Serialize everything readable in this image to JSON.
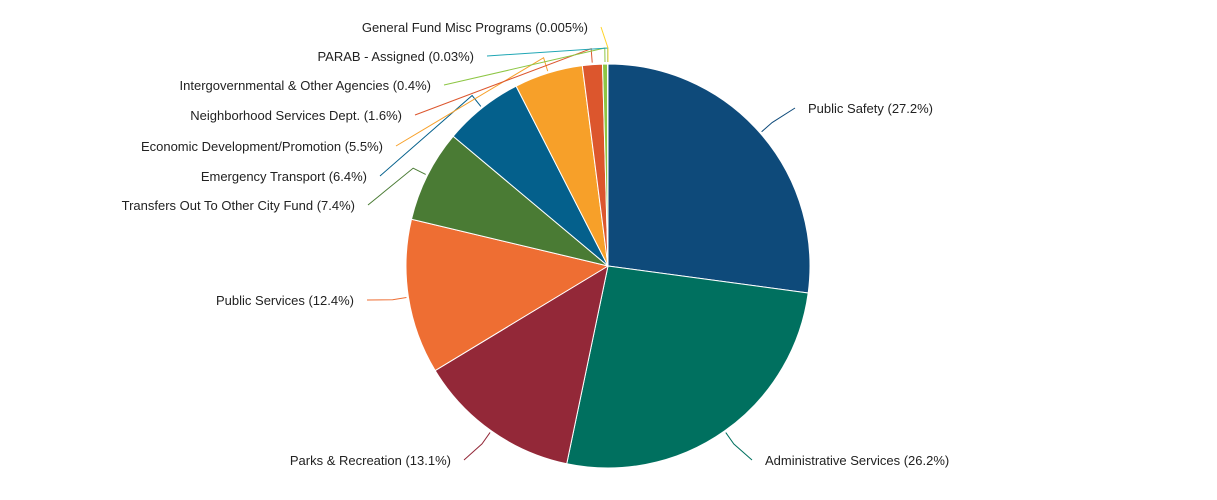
{
  "chart_data": {
    "type": "pie",
    "title": "",
    "series": [
      {
        "name": "Public Safety",
        "value": 27.2,
        "display": "27.2%",
        "color": "#0e4a7a"
      },
      {
        "name": "Administrative Services",
        "value": 26.2,
        "display": "26.2%",
        "color": "#00705f"
      },
      {
        "name": "Parks & Recreation",
        "value": 13.1,
        "display": "13.1%",
        "color": "#932838"
      },
      {
        "name": "Public Services",
        "value": 12.4,
        "display": "12.4%",
        "color": "#ee6e33"
      },
      {
        "name": "Transfers Out To Other City Fund",
        "value": 7.4,
        "display": "7.4%",
        "color": "#4a7b34"
      },
      {
        "name": "Emergency Transport",
        "value": 6.4,
        "display": "6.4%",
        "color": "#04608c"
      },
      {
        "name": "Economic Development/Promotion",
        "value": 5.5,
        "display": "5.5%",
        "color": "#f7a029"
      },
      {
        "name": "Neighborhood Services Dept.",
        "value": 1.6,
        "display": "1.6%",
        "color": "#dc562d"
      },
      {
        "name": "Intergovernmental & Other Agencies",
        "value": 0.4,
        "display": "0.4%",
        "color": "#8dc644"
      },
      {
        "name": "PARAB - Assigned",
        "value": 0.03,
        "display": "0.03%",
        "color": "#1fa6b4"
      },
      {
        "name": "General Fund Misc Programs",
        "value": 0.005,
        "display": "0.005%",
        "color": "#ffd42a"
      }
    ]
  }
}
